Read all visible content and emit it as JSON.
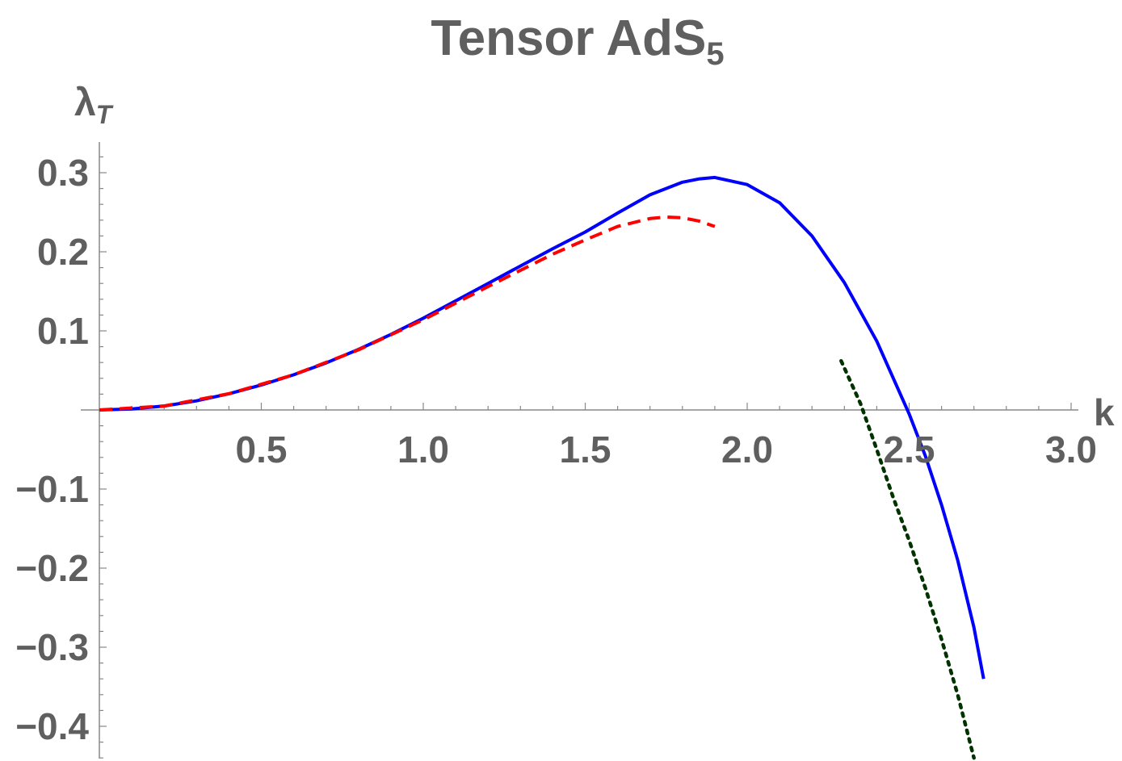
{
  "chart_data": {
    "type": "line",
    "title": "Tensor AdS",
    "title_subscript": "5",
    "xlabel": "k",
    "ylabel": "λ",
    "ylabel_subscript": "T",
    "xlim": [
      0,
      3.05
    ],
    "ylim": [
      -0.44,
      0.335
    ],
    "x_ticks": [
      0.5,
      1.0,
      1.5,
      2.0,
      2.5,
      3.0
    ],
    "x_tick_labels": [
      "0.5",
      "1.0",
      "1.5",
      "2.0",
      "2.5",
      "3.0"
    ],
    "y_ticks": [
      -0.4,
      -0.3,
      -0.2,
      -0.1,
      0.1,
      0.2,
      0.3
    ],
    "y_tick_labels": [
      "−0.4",
      "−0.3",
      "−0.2",
      "−0.1",
      "0.1",
      "0.2",
      "0.3"
    ],
    "grid": false,
    "series": [
      {
        "style": "solid",
        "color": "#0000ff",
        "x": [
          0,
          0.1,
          0.2,
          0.3,
          0.4,
          0.5,
          0.6,
          0.7,
          0.8,
          0.9,
          1.0,
          1.1,
          1.2,
          1.3,
          1.4,
          1.5,
          1.6,
          1.7,
          1.8,
          1.85,
          1.9,
          2.0,
          2.1,
          2.2,
          2.3,
          2.4,
          2.5,
          2.55,
          2.6,
          2.65,
          2.7,
          2.73
        ],
        "y": [
          0,
          0.0013,
          0.005,
          0.0115,
          0.0205,
          0.0315,
          0.0445,
          0.0595,
          0.0765,
          0.0955,
          0.116,
          0.138,
          0.16,
          0.182,
          0.204,
          0.225,
          0.249,
          0.272,
          0.288,
          0.292,
          0.294,
          0.285,
          0.262,
          0.22,
          0.161,
          0.087,
          -0.005,
          -0.058,
          -0.12,
          -0.19,
          -0.275,
          -0.34
        ]
      },
      {
        "style": "dashed",
        "color": "#ff0000",
        "x": [
          0,
          0.2,
          0.4,
          0.6,
          0.8,
          1.0,
          1.2,
          1.4,
          1.5,
          1.6,
          1.7,
          1.75,
          1.8,
          1.85,
          1.9
        ],
        "y": [
          0,
          0.005,
          0.0205,
          0.0445,
          0.076,
          0.114,
          0.156,
          0.197,
          0.215,
          0.232,
          0.242,
          0.244,
          0.243,
          0.239,
          0.232
        ]
      },
      {
        "style": "dotted",
        "color": "#003300",
        "x": [
          2.29,
          2.35,
          2.4,
          2.45,
          2.5,
          2.55,
          2.6,
          2.65,
          2.7
        ],
        "y": [
          0.062,
          0.008,
          -0.05,
          -0.11,
          -0.165,
          -0.225,
          -0.29,
          -0.36,
          -0.44
        ]
      }
    ]
  }
}
